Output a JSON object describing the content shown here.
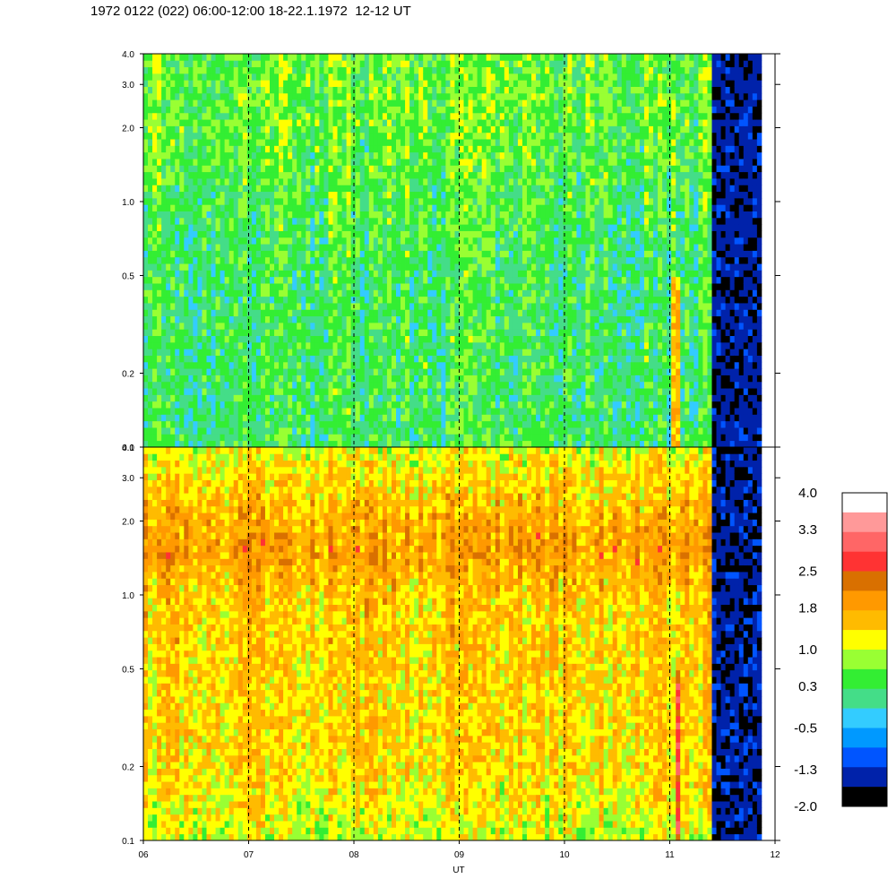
{
  "header": {
    "title": "1972 0122 (022) 06:00-12:00 18-22.1.1972  12-12 UT"
  },
  "chart_data": {
    "type": "heatmap",
    "title": "1972 0122 (022) 06:00-12:00 18-22.1.1972  12-12 UT",
    "xlabel": "UT",
    "x_ticks": [
      "06",
      "07",
      "08",
      "09",
      "10",
      "11",
      "12"
    ],
    "x_tick_values": [
      6,
      7,
      8,
      9,
      10,
      11,
      12
    ],
    "xlim": [
      6,
      12
    ],
    "y_scale": "log",
    "y_ticks": [
      "0.1",
      "0.2",
      "0.5",
      "1.0",
      "2.0",
      "3.0",
      "4.0"
    ],
    "y_tick_values": [
      0.1,
      0.2,
      0.5,
      1.0,
      2.0,
      3.0,
      4.0
    ],
    "ylim": [
      0.1,
      4.0
    ],
    "data_gap_after": 11.85,
    "colorbar": {
      "labels": [
        "4.0",
        "3.3",
        "2.5",
        "1.8",
        "1.0",
        "0.3",
        "-0.5",
        "-1.3",
        "-2.0"
      ],
      "label_values": [
        4.0,
        3.3,
        2.5,
        1.8,
        1.0,
        0.3,
        -0.5,
        -1.3,
        -2.0
      ],
      "range": [
        -2.0,
        4.0
      ],
      "colors_top_to_bottom": [
        "#ffffff",
        "#ff9999",
        "#ff6666",
        "#ff3333",
        "#d97000",
        "#ff9900",
        "#ffbb00",
        "#ffff00",
        "#99ff33",
        "#33ee33",
        "#44dd88",
        "#33ccff",
        "#0099ff",
        "#0055ff",
        "#0022aa",
        "#000000"
      ]
    },
    "panels": [
      {
        "name": "upper",
        "profile_y": [
          0.1,
          0.2,
          0.5,
          1.0,
          2.0,
          4.0
        ],
        "profile_level": [
          0.3,
          0.3,
          0.3,
          0.4,
          0.6,
          0.6
        ],
        "events": [
          {
            "x_start": 11.0,
            "x_end": 11.12,
            "y_range": [
              0.1,
              0.5
            ],
            "level": 1.6
          },
          {
            "x_start": 11.4,
            "x_end": 11.85,
            "y_range": [
              0.1,
              4.0
            ],
            "level": -1.5
          }
        ]
      },
      {
        "name": "lower",
        "profile_y": [
          0.1,
          0.2,
          0.5,
          1.0,
          1.5,
          2.0,
          4.0
        ],
        "profile_level": [
          1.0,
          1.4,
          1.4,
          1.5,
          1.9,
          1.7,
          1.1
        ],
        "events": [
          {
            "x_start": 11.05,
            "x_end": 11.12,
            "y_range": [
              0.1,
              0.5
            ],
            "level": 2.7
          },
          {
            "x_start": 11.4,
            "x_end": 11.85,
            "y_range": [
              0.1,
              4.0
            ],
            "level": -1.5
          }
        ]
      }
    ]
  }
}
